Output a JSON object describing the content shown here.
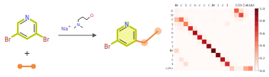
{
  "reaction": {
    "reactant_atoms": {
      "n": "N",
      "br1": "Br",
      "br2": "Br"
    },
    "plus": "+",
    "reagent_ion": {
      "symbol": "Na",
      "charge": "+"
    },
    "reagent_atoms": {
      "n": "N",
      "o": "O"
    },
    "product_atoms": {
      "n": "N",
      "br": "Br"
    }
  },
  "chart_data": {
    "type": "heatmap",
    "x_labels": [
      "Br",
      "c",
      "1",
      "c",
      "n",
      "c",
      "c",
      "(",
      "Br",
      ")",
      "c",
      "1",
      ".",
      "C",
      "[O-]",
      ">",
      "A1A2"
    ],
    "y_labels": [
      "C",
      "O",
      "c",
      "1",
      "c",
      "n",
      "c",
      "c",
      "(",
      "Br",
      ")",
      "c",
      "1",
      "</s>"
    ],
    "cells": [
      [
        0.05,
        0.03,
        0.02,
        0.03,
        0.02,
        0.02,
        0.02,
        0.02,
        0.03,
        0.02,
        0.02,
        0.02,
        0.04,
        0.55,
        0.12,
        0.03,
        0.02
      ],
      [
        0.04,
        0.02,
        0.02,
        0.02,
        0.02,
        0.02,
        0.02,
        0.02,
        0.02,
        0.02,
        0.02,
        0.02,
        0.03,
        0.15,
        0.6,
        0.05,
        0.02
      ],
      [
        0.25,
        0.5,
        0.08,
        0.03,
        0.02,
        0.02,
        0.02,
        0.02,
        0.03,
        0.02,
        0.02,
        0.02,
        0.02,
        0.04,
        0.05,
        0.02,
        0.02
      ],
      [
        0.06,
        0.08,
        0.45,
        0.05,
        0.02,
        0.02,
        0.02,
        0.02,
        0.02,
        0.02,
        0.02,
        0.06,
        0.02,
        0.02,
        0.02,
        0.02,
        0.02
      ],
      [
        0.03,
        0.05,
        0.04,
        0.7,
        0.06,
        0.02,
        0.02,
        0.02,
        0.02,
        0.02,
        0.02,
        0.02,
        0.02,
        0.02,
        0.02,
        0.02,
        0.02
      ],
      [
        0.02,
        0.02,
        0.02,
        0.05,
        0.85,
        0.05,
        0.02,
        0.02,
        0.02,
        0.02,
        0.02,
        0.02,
        0.02,
        0.02,
        0.02,
        0.02,
        0.02
      ],
      [
        0.02,
        0.02,
        0.02,
        0.02,
        0.06,
        0.75,
        0.05,
        0.02,
        0.02,
        0.02,
        0.02,
        0.02,
        0.02,
        0.02,
        0.02,
        0.02,
        0.02
      ],
      [
        0.02,
        0.02,
        0.02,
        0.02,
        0.02,
        0.05,
        0.8,
        0.06,
        0.02,
        0.02,
        0.02,
        0.02,
        0.02,
        0.02,
        0.02,
        0.02,
        0.02
      ],
      [
        0.02,
        0.02,
        0.02,
        0.02,
        0.02,
        0.02,
        0.04,
        0.9,
        0.03,
        0.02,
        0.02,
        0.02,
        0.02,
        0.02,
        0.02,
        0.02,
        0.02
      ],
      [
        0.15,
        0.02,
        0.02,
        0.02,
        0.02,
        0.02,
        0.02,
        0.03,
        1.0,
        0.02,
        0.02,
        0.02,
        0.02,
        0.02,
        0.02,
        0.02,
        0.02
      ],
      [
        0.02,
        0.02,
        0.02,
        0.02,
        0.02,
        0.02,
        0.02,
        0.02,
        0.04,
        0.95,
        0.03,
        0.02,
        0.02,
        0.02,
        0.02,
        0.02,
        0.02
      ],
      [
        0.02,
        0.1,
        0.02,
        0.02,
        0.02,
        0.02,
        0.02,
        0.02,
        0.02,
        0.04,
        0.8,
        0.05,
        0.02,
        0.02,
        0.02,
        0.02,
        0.02
      ],
      [
        0.02,
        0.02,
        0.12,
        0.02,
        0.02,
        0.02,
        0.02,
        0.02,
        0.02,
        0.02,
        0.06,
        0.7,
        0.03,
        0.02,
        0.02,
        0.02,
        0.02
      ],
      [
        0.03,
        0.02,
        0.02,
        0.02,
        0.02,
        0.02,
        0.02,
        0.02,
        0.02,
        0.02,
        0.02,
        0.02,
        0.2,
        0.05,
        0.05,
        0.3,
        0.4
      ]
    ],
    "colorbar": {
      "range": [
        0,
        1
      ],
      "ticks": [
        {
          "value": 0,
          "label": "0.0"
        },
        {
          "value": 0.2,
          "label": "0.2"
        },
        {
          "value": 0.4,
          "label": "0.4"
        },
        {
          "value": 0.6,
          "label": "0.6"
        },
        {
          "value": 0.8,
          "label": "0.8"
        },
        {
          "value": 1,
          "label": "1.0"
        }
      ]
    }
  }
}
